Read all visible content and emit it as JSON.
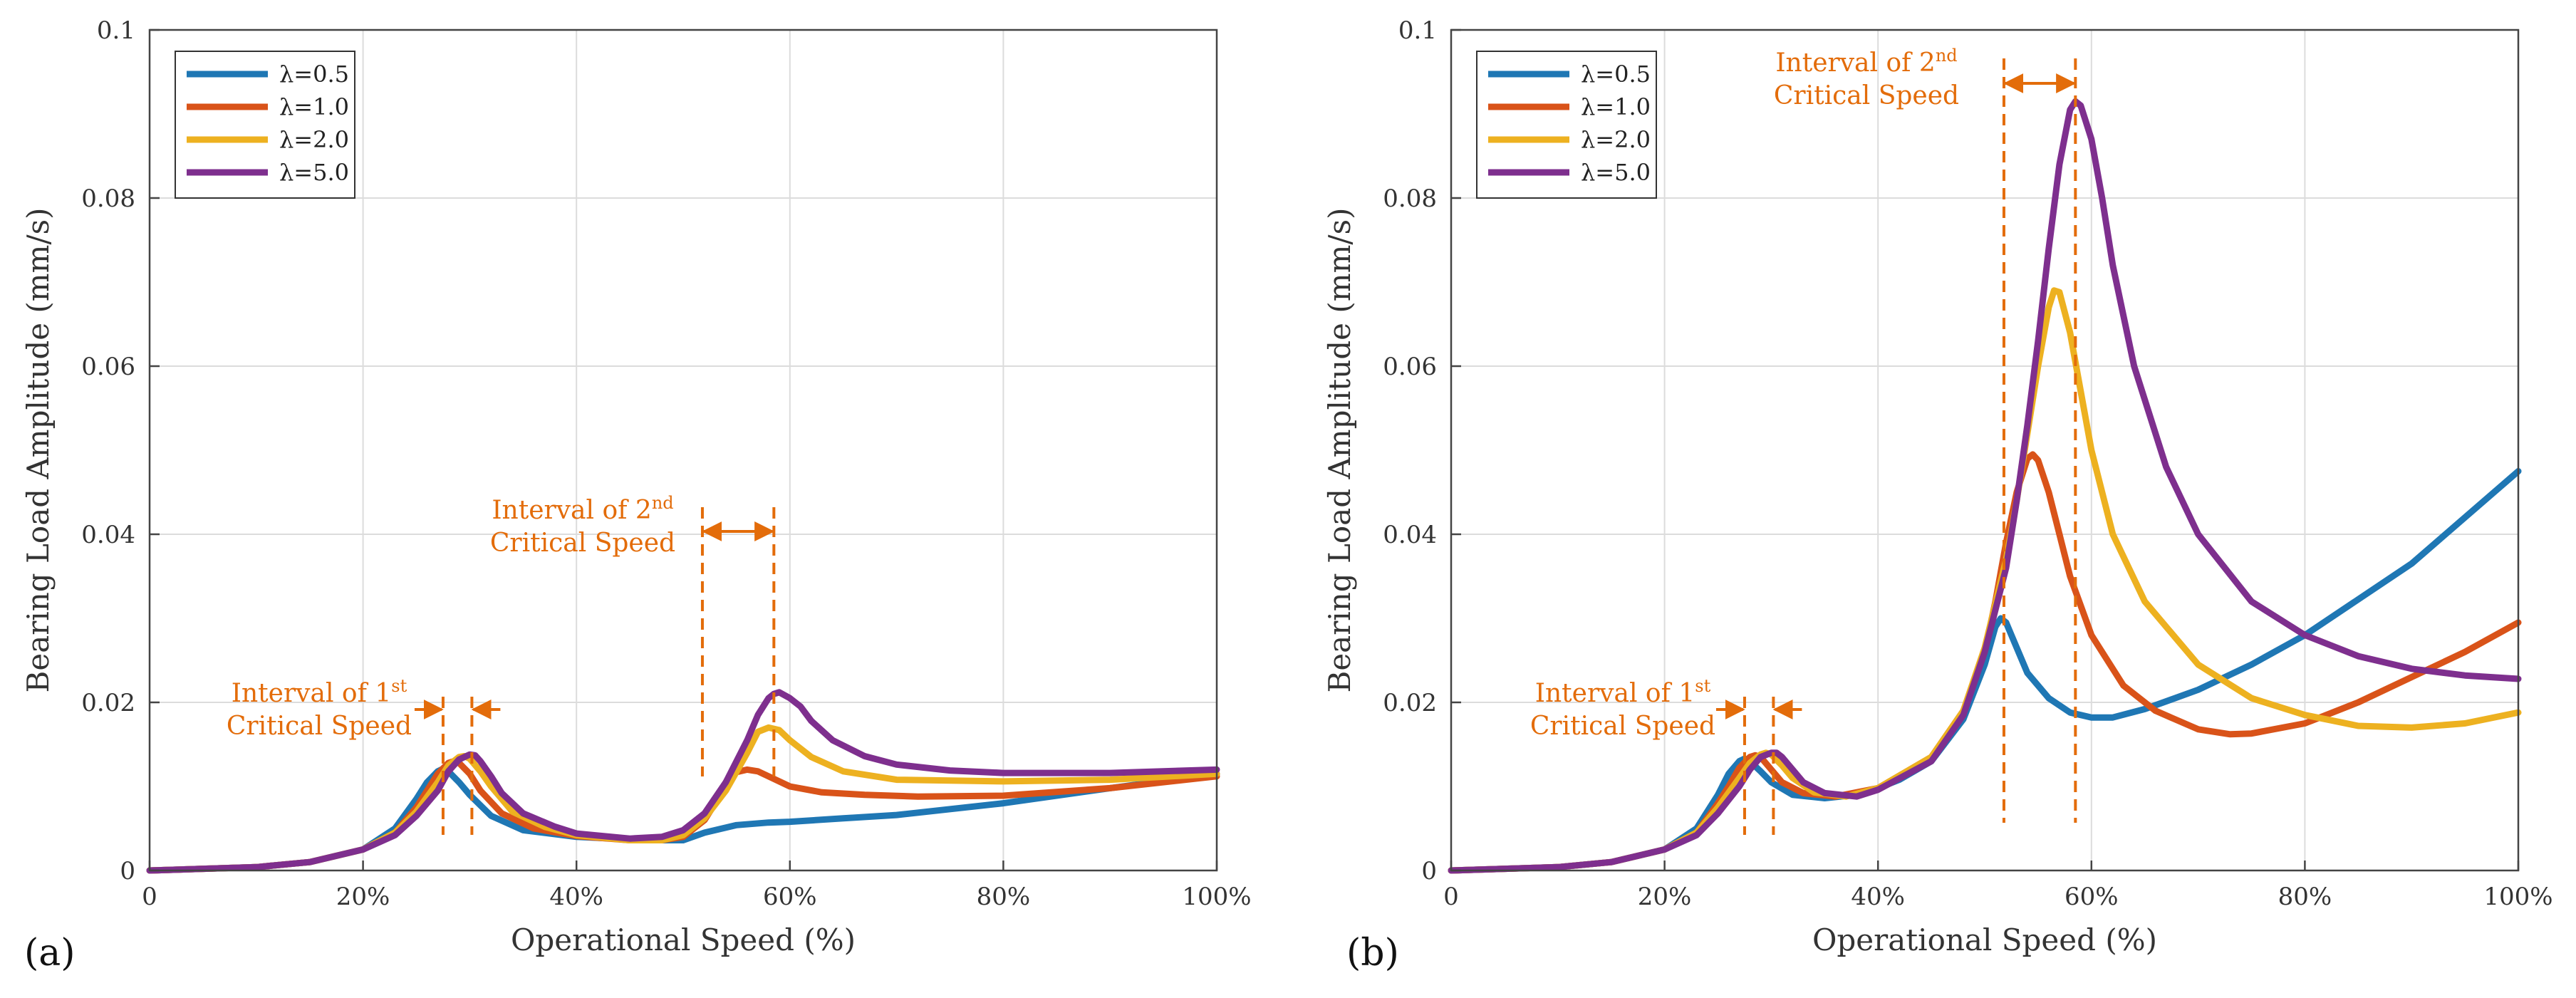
{
  "chart_data": [
    {
      "type": "line",
      "panel_label": "(a)",
      "xlabel": "Operational Speed (%)",
      "ylabel": "Bearing Load Amplitude (mm/s)",
      "xlim": [
        0,
        100
      ],
      "ylim": [
        0,
        0.1
      ],
      "xticks": [
        0,
        20,
        40,
        60,
        80,
        100
      ],
      "xtick_labels": [
        "0",
        "20%",
        "40%",
        "60%",
        "80%",
        "100%"
      ],
      "yticks": [
        0,
        0.02,
        0.04,
        0.06,
        0.08,
        0.1
      ],
      "ytick_labels": [
        "0",
        "0.02",
        "0.04",
        "0.06",
        "0.08",
        "0.1"
      ],
      "grid": true,
      "legend_position": "top-left",
      "series": [
        {
          "name": "λ=0.5",
          "color": "#1F77B4",
          "x": [
            0,
            10,
            15,
            20,
            23,
            25,
            26,
            27,
            27.5,
            28,
            29,
            30,
            32,
            35,
            40,
            45,
            48,
            50,
            52,
            55,
            58,
            60,
            65,
            70,
            80,
            90,
            100
          ],
          "values": [
            0,
            0.0004,
            0.001,
            0.0025,
            0.005,
            0.0085,
            0.0105,
            0.0118,
            0.0121,
            0.0118,
            0.0105,
            0.009,
            0.0065,
            0.0048,
            0.004,
            0.0037,
            0.0036,
            0.0036,
            0.0045,
            0.0054,
            0.0057,
            0.0058,
            0.0062,
            0.0066,
            0.008,
            0.0098,
            0.0115
          ]
        },
        {
          "name": "λ=1.0",
          "color": "#D95319",
          "x": [
            0,
            10,
            15,
            20,
            23,
            25,
            26,
            27,
            28,
            28.5,
            29,
            30,
            31,
            33,
            36,
            40,
            45,
            48,
            50,
            52,
            53,
            54,
            55,
            56,
            57,
            58,
            60,
            63,
            67,
            72,
            80,
            90,
            100
          ],
          "values": [
            0,
            0.0004,
            0.001,
            0.0025,
            0.0045,
            0.0075,
            0.0095,
            0.0115,
            0.0128,
            0.013,
            0.0128,
            0.0115,
            0.0095,
            0.0068,
            0.005,
            0.0041,
            0.0036,
            0.0036,
            0.004,
            0.006,
            0.008,
            0.0105,
            0.0117,
            0.012,
            0.0118,
            0.0112,
            0.01,
            0.0093,
            0.009,
            0.0088,
            0.0089,
            0.0098,
            0.0112
          ]
        },
        {
          "name": "λ=2.0",
          "color": "#EDB120",
          "x": [
            0,
            10,
            15,
            20,
            23,
            25,
            27,
            28,
            29,
            29.5,
            30,
            31,
            32,
            34,
            37,
            40,
            45,
            48,
            50,
            52,
            54,
            56,
            57,
            58,
            59,
            60,
            62,
            65,
            70,
            80,
            90,
            100
          ],
          "values": [
            0,
            0.0004,
            0.001,
            0.0025,
            0.0045,
            0.007,
            0.0105,
            0.0125,
            0.0135,
            0.0136,
            0.0133,
            0.0118,
            0.01,
            0.007,
            0.0052,
            0.0042,
            0.0036,
            0.0036,
            0.0042,
            0.0062,
            0.0095,
            0.014,
            0.0165,
            0.017,
            0.0167,
            0.0155,
            0.0135,
            0.0118,
            0.0108,
            0.0106,
            0.0108,
            0.0115
          ]
        },
        {
          "name": "λ=5.0",
          "color": "#7E2F8E",
          "x": [
            0,
            10,
            15,
            20,
            23,
            25,
            27,
            28,
            29,
            30,
            30.5,
            31,
            32,
            33,
            35,
            38,
            40,
            45,
            48,
            50,
            52,
            54,
            56,
            57,
            58,
            58.5,
            59,
            60,
            61,
            62,
            64,
            67,
            70,
            75,
            80,
            90,
            100
          ],
          "values": [
            0,
            0.0004,
            0.001,
            0.0025,
            0.0042,
            0.0065,
            0.0095,
            0.0118,
            0.0132,
            0.0138,
            0.0137,
            0.013,
            0.0112,
            0.0092,
            0.0068,
            0.0052,
            0.0044,
            0.0038,
            0.004,
            0.0048,
            0.0068,
            0.0105,
            0.0155,
            0.0185,
            0.0205,
            0.021,
            0.0212,
            0.0205,
            0.0195,
            0.0178,
            0.0155,
            0.0136,
            0.0126,
            0.0119,
            0.0116,
            0.0116,
            0.012
          ]
        }
      ],
      "annotations": [
        {
          "text_lines": [
            "Interval of 1st",
            "Critical Speed"
          ],
          "interval": [
            27.5,
            30.2
          ]
        },
        {
          "text_lines": [
            "Interval of 2nd",
            "Critical Speed"
          ],
          "interval": [
            51.8,
            58.5
          ]
        }
      ]
    },
    {
      "type": "line",
      "panel_label": "(b)",
      "xlabel": "Operational Speed (%)",
      "ylabel": "Bearing Load Amplitude (mm/s)",
      "xlim": [
        0,
        100
      ],
      "ylim": [
        0,
        0.1
      ],
      "xticks": [
        0,
        20,
        40,
        60,
        80,
        100
      ],
      "xtick_labels": [
        "0",
        "20%",
        "40%",
        "60%",
        "80%",
        "100%"
      ],
      "yticks": [
        0,
        0.02,
        0.04,
        0.06,
        0.08,
        0.1
      ],
      "ytick_labels": [
        "0",
        "0.02",
        "0.04",
        "0.06",
        "0.08",
        "0.1"
      ],
      "grid": true,
      "legend_position": "top-left",
      "series": [
        {
          "name": "λ=0.5",
          "color": "#1F77B4",
          "x": [
            0,
            10,
            15,
            20,
            23,
            25,
            26,
            27,
            27.5,
            28,
            29,
            30,
            32,
            35,
            38,
            40,
            42,
            45,
            48,
            50,
            51,
            51.5,
            52,
            53,
            54,
            56,
            58,
            60,
            62,
            65,
            70,
            75,
            80,
            90,
            100
          ],
          "values": [
            0,
            0.0004,
            0.001,
            0.0025,
            0.005,
            0.009,
            0.0115,
            0.013,
            0.0133,
            0.013,
            0.0118,
            0.0105,
            0.009,
            0.0086,
            0.009,
            0.0098,
            0.0108,
            0.013,
            0.018,
            0.0245,
            0.029,
            0.03,
            0.0295,
            0.0265,
            0.0235,
            0.0205,
            0.0188,
            0.0182,
            0.0182,
            0.0192,
            0.0215,
            0.0245,
            0.028,
            0.0365,
            0.0475
          ]
        },
        {
          "name": "λ=1.0",
          "color": "#D95319",
          "x": [
            0,
            10,
            15,
            20,
            23,
            25,
            26,
            27,
            28,
            28.5,
            29,
            30,
            31,
            33,
            36,
            40,
            45,
            48,
            50,
            51,
            52,
            53,
            54,
            54.5,
            55,
            56,
            57,
            58,
            60,
            63,
            66,
            70,
            73,
            75,
            80,
            85,
            90,
            95,
            100
          ],
          "values": [
            0,
            0.0004,
            0.001,
            0.0025,
            0.0045,
            0.008,
            0.01,
            0.0122,
            0.0135,
            0.0137,
            0.0135,
            0.012,
            0.0105,
            0.0092,
            0.0088,
            0.0098,
            0.0135,
            0.019,
            0.026,
            0.032,
            0.039,
            0.045,
            0.049,
            0.0495,
            0.0488,
            0.045,
            0.04,
            0.035,
            0.028,
            0.022,
            0.019,
            0.0168,
            0.0162,
            0.0163,
            0.0175,
            0.02,
            0.023,
            0.026,
            0.0295
          ]
        },
        {
          "name": "λ=2.0",
          "color": "#EDB120",
          "x": [
            0,
            10,
            15,
            20,
            23,
            25,
            27,
            28,
            29,
            29.5,
            30,
            31,
            32,
            34,
            37,
            40,
            45,
            48,
            50,
            52,
            53,
            54,
            55,
            56,
            56.5,
            57,
            58,
            59,
            60,
            62,
            65,
            70,
            75,
            80,
            85,
            90,
            95,
            100
          ],
          "values": [
            0,
            0.0004,
            0.001,
            0.0025,
            0.0045,
            0.0075,
            0.011,
            0.0128,
            0.0138,
            0.014,
            0.0138,
            0.0125,
            0.011,
            0.0093,
            0.0088,
            0.0098,
            0.0135,
            0.019,
            0.0265,
            0.037,
            0.044,
            0.052,
            0.06,
            0.067,
            0.069,
            0.0688,
            0.064,
            0.057,
            0.05,
            0.04,
            0.032,
            0.0245,
            0.0205,
            0.0185,
            0.0172,
            0.017,
            0.0175,
            0.0188
          ]
        },
        {
          "name": "λ=5.0",
          "color": "#7E2F8E",
          "x": [
            0,
            10,
            15,
            20,
            23,
            25,
            27,
            28,
            29,
            30,
            30.5,
            31,
            32,
            33,
            35,
            38,
            40,
            45,
            48,
            50,
            52,
            53,
            54,
            55,
            56,
            57,
            58,
            58.5,
            59,
            60,
            61,
            62,
            64,
            67,
            70,
            75,
            80,
            85,
            90,
            95,
            100
          ],
          "values": [
            0,
            0.0004,
            0.001,
            0.0025,
            0.0042,
            0.0068,
            0.01,
            0.012,
            0.0135,
            0.014,
            0.014,
            0.0135,
            0.012,
            0.0105,
            0.0092,
            0.0088,
            0.0096,
            0.013,
            0.0185,
            0.026,
            0.036,
            0.044,
            0.053,
            0.063,
            0.074,
            0.084,
            0.0905,
            0.0915,
            0.091,
            0.087,
            0.08,
            0.072,
            0.06,
            0.048,
            0.04,
            0.032,
            0.028,
            0.0255,
            0.024,
            0.0232,
            0.0228
          ]
        }
      ],
      "annotations": [
        {
          "text_lines": [
            "Interval of 1st",
            "Critical Speed"
          ],
          "interval": [
            27.5,
            30.2
          ]
        },
        {
          "text_lines": [
            "Interval of 2nd",
            "Critical Speed"
          ],
          "interval": [
            51.8,
            58.5
          ]
        }
      ]
    }
  ]
}
